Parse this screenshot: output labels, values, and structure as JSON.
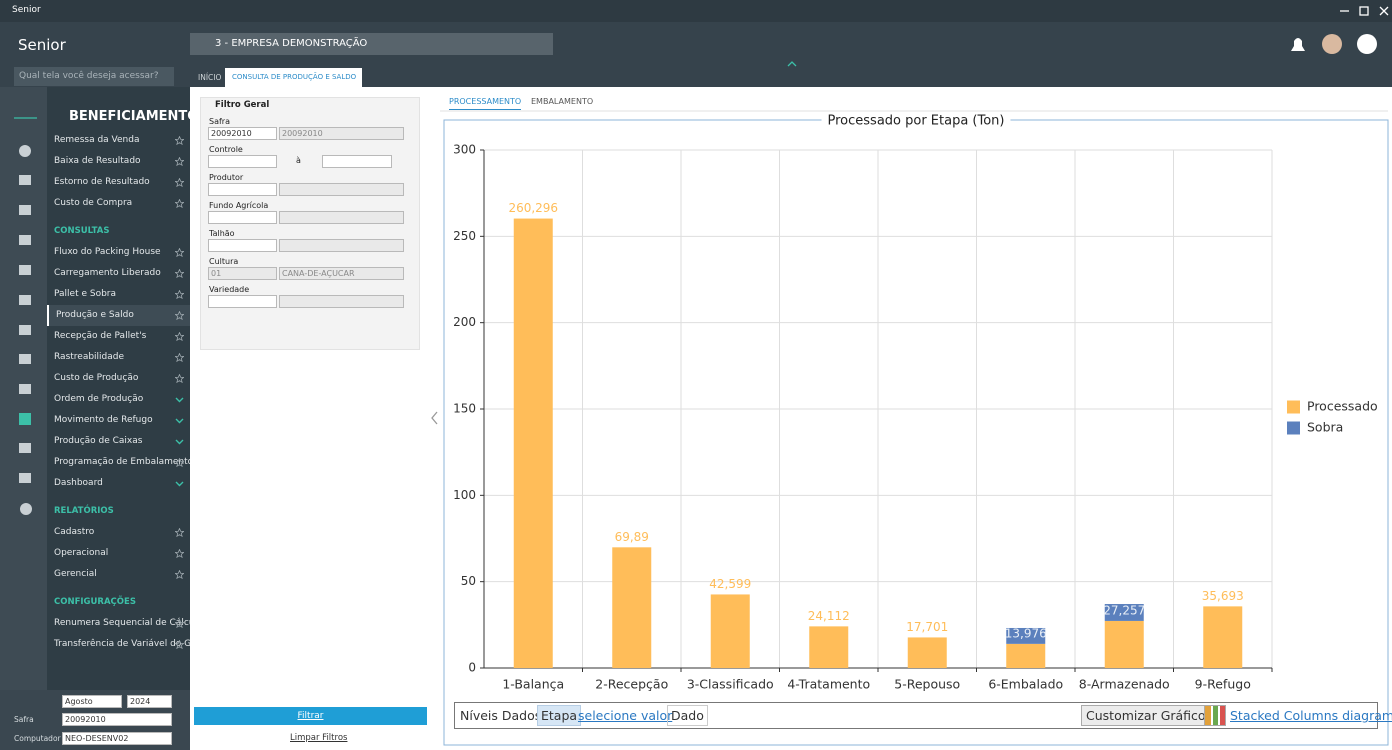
{
  "window": {
    "title": "Senior"
  },
  "header": {
    "logo": "Senior",
    "search_placeholder": "Qual tela você deseja acessar?",
    "company": "3 - EMPRESA DEMONSTRAÇÃO"
  },
  "tabs": [
    "INÍCIO",
    "CONSULTA DE PRODUÇÃO E SALDO"
  ],
  "menu": {
    "title": "BENEFICIAMENTO",
    "groups": [
      {
        "items": [
          {
            "label": "Remessa da Venda"
          },
          {
            "label": "Baixa de Resultado"
          },
          {
            "label": "Estorno de Resultado"
          },
          {
            "label": "Custo de Compra"
          }
        ]
      },
      {
        "heading": "CONSULTAS",
        "items": [
          {
            "label": "Fluxo do Packing House"
          },
          {
            "label": "Carregamento Liberado"
          },
          {
            "label": "Pallet e Sobra"
          },
          {
            "label": "Produção e Saldo",
            "selected": true
          },
          {
            "label": "Recepção de Pallet's"
          },
          {
            "label": "Rastreabilidade"
          },
          {
            "label": "Custo de Produção"
          },
          {
            "label": "Ordem de Produção",
            "expand": true
          },
          {
            "label": "Movimento de Refugo",
            "expand": true
          },
          {
            "label": "Produção de Caixas",
            "expand": true
          },
          {
            "label": "Programação de Embalamento"
          },
          {
            "label": "Dashboard",
            "expand": true
          }
        ]
      },
      {
        "heading": "RELATÓRIOS",
        "items": [
          {
            "label": "Cadastro"
          },
          {
            "label": "Operacional"
          },
          {
            "label": "Gerencial"
          }
        ]
      },
      {
        "heading": "CONFIGURAÇÕES",
        "items": [
          {
            "label": "Renumera Sequencial de Cálculo"
          },
          {
            "label": "Transferência de Variável do Grupo"
          }
        ]
      }
    ]
  },
  "period": {
    "month": "Agosto",
    "year": "2024",
    "fields": [
      {
        "label": "Safra",
        "value": "20092010"
      },
      {
        "label": "Computador",
        "value": "NEO-DESENV02"
      }
    ]
  },
  "filter": {
    "title": "Filtro Geral",
    "fields": [
      {
        "label": "Safra",
        "code": "20092010",
        "description": "20092010"
      },
      {
        "label": "Controle",
        "range_separator": "à"
      },
      {
        "label": "Produtor"
      },
      {
        "label": "Fundo Agrícola"
      },
      {
        "label": "Talhão"
      },
      {
        "label": "Cultura",
        "code": "01",
        "description": "CANA-DE-AÇUCAR"
      },
      {
        "label": "Variedade"
      }
    ]
  },
  "filter_actions": [
    "Filtrar",
    "Limpar Filtros"
  ],
  "view_tabs": [
    "PROCESSAMENTO",
    "EMBALAMENTO"
  ],
  "chart_data": {
    "type": "bar",
    "stacked": true,
    "title": "Processado por Etapa (Ton)",
    "categories": [
      "1-Balança",
      "2-Recepção",
      "3-Classificado",
      "4-Tratamento",
      "5-Repouso",
      "6-Embalado",
      "8-Armazenado",
      "9-Refugo"
    ],
    "series": [
      {
        "name": "Processado",
        "color": "#ffbd59",
        "values": [
          260.296,
          69.89,
          42.599,
          24.112,
          17.701,
          13.976,
          27.257,
          35.693
        ],
        "value_labels": [
          "260,296",
          "69,89",
          "42,599",
          "24,112",
          "17,701",
          "13,976",
          "27,257",
          "35,693"
        ]
      },
      {
        "name": "Sobra",
        "color": "#5b80bd",
        "values": [
          0,
          0,
          0,
          0,
          0,
          9.2,
          9.8,
          0
        ]
      }
    ],
    "ylim": [
      0,
      300
    ],
    "yticks": [
      0,
      50,
      100,
      150,
      200,
      250,
      300
    ],
    "grid": true,
    "legend": "right"
  },
  "chart_toolbar": {
    "levels_label": "Níveis Dados",
    "level": "Etapa",
    "selector": "selecione valor",
    "data": "Dado",
    "customize": "Customizar Gráfico",
    "chart_kind": "Stacked Columns diagram"
  }
}
